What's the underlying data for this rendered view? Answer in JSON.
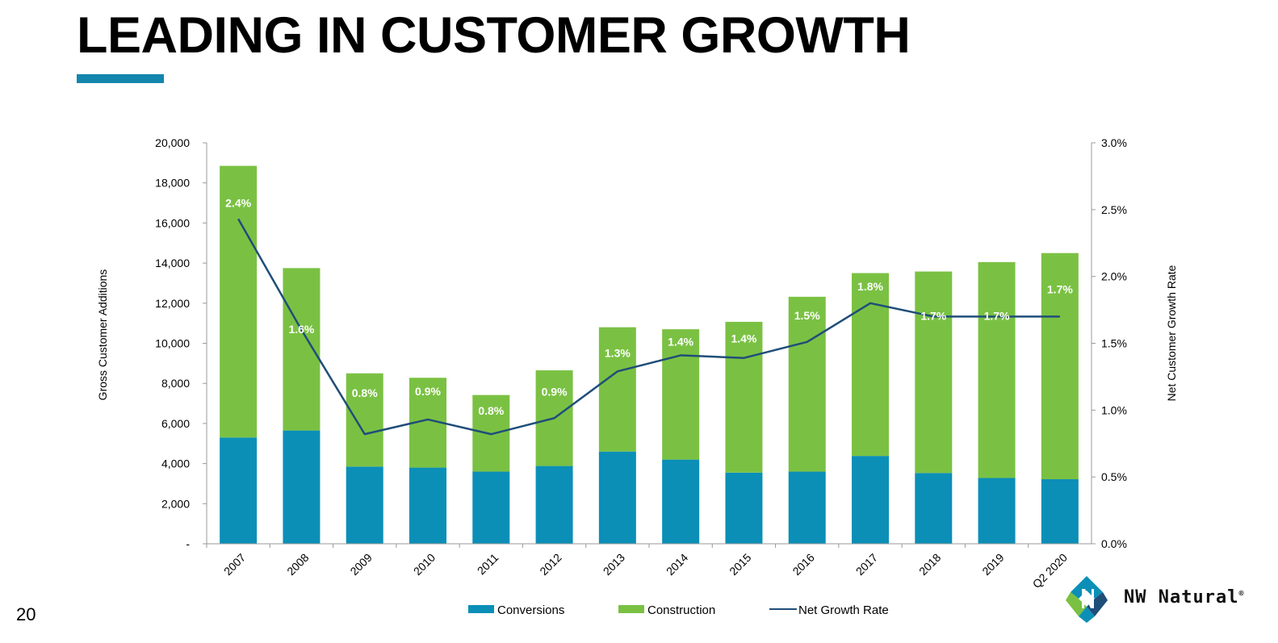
{
  "slide": {
    "title": "LEADING IN CUSTOMER GROWTH",
    "page_number": "20",
    "brand_name": "NW Natural",
    "brand_mark": "®"
  },
  "colors": {
    "conversions": "#0b8fb7",
    "construction": "#7ac143",
    "line": "#1f4e79",
    "accent_bar": "#1386ad"
  },
  "chart_data": {
    "type": "bar",
    "stacked": true,
    "categories": [
      "2007",
      "2008",
      "2009",
      "2010",
      "2011",
      "2012",
      "2013",
      "2014",
      "2015",
      "2016",
      "2017",
      "2018",
      "2019",
      "Q2 2020"
    ],
    "series": [
      {
        "name": "Conversions",
        "kind": "bar",
        "axis": "left",
        "values": [
          5300,
          5650,
          3850,
          3800,
          3600,
          3880,
          4600,
          4200,
          3550,
          3600,
          4380,
          3530,
          3280,
          3220
        ]
      },
      {
        "name": "Construction",
        "kind": "bar",
        "axis": "left",
        "values": [
          13550,
          8100,
          4650,
          4480,
          3820,
          4770,
          6200,
          6500,
          7520,
          8720,
          9120,
          10050,
          10770,
          11280
        ]
      },
      {
        "name": "Net Growth Rate",
        "kind": "line",
        "axis": "right",
        "values": [
          2.4,
          1.6,
          0.8,
          0.9,
          0.8,
          0.9,
          1.3,
          1.4,
          1.4,
          1.5,
          1.8,
          1.7,
          1.7,
          1.7
        ],
        "plot_values": [
          2.43,
          1.6,
          0.82,
          0.93,
          0.82,
          0.94,
          1.29,
          1.41,
          1.39,
          1.51,
          1.8,
          1.7,
          1.7,
          1.7
        ],
        "labels": [
          "2.4%",
          "1.6%",
          "0.8%",
          "0.9%",
          "0.8%",
          "0.9%",
          "1.3%",
          "1.4%",
          "1.4%",
          "1.5%",
          "1.8%",
          "1.7%",
          "1.7%",
          "1.7%"
        ]
      }
    ],
    "y_left": {
      "label": "Gross Customer Additions",
      "min": 0,
      "max": 20000,
      "ticks": [
        0,
        2000,
        4000,
        6000,
        8000,
        10000,
        12000,
        14000,
        16000,
        18000,
        20000
      ],
      "tick_labels": [
        "-",
        "2,000",
        "4,000",
        "6,000",
        "8,000",
        "10,000",
        "12,000",
        "14,000",
        "16,000",
        "18,000",
        "20,000"
      ]
    },
    "y_right": {
      "label": "Net Customer Growth Rate",
      "min": 0,
      "max": 3.0,
      "ticks": [
        0,
        0.5,
        1.0,
        1.5,
        2.0,
        2.5,
        3.0
      ],
      "tick_labels": [
        "0.0%",
        "0.5%",
        "1.0%",
        "1.5%",
        "2.0%",
        "2.5%",
        "3.0%"
      ]
    },
    "legend": [
      "Conversions",
      "Construction",
      "Net Growth Rate"
    ],
    "legend_position": "bottom"
  }
}
